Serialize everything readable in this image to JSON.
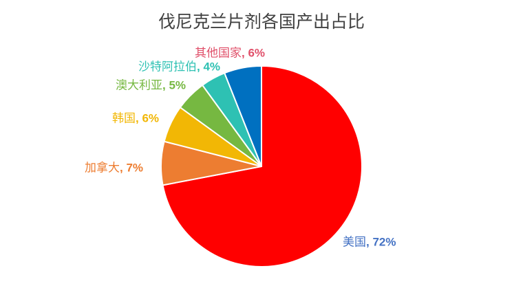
{
  "chart_data": {
    "type": "pie",
    "title": "伐尼克兰片剂各国产出占比",
    "start_angle": "12 o'clock",
    "direction": "clockwise",
    "slices": [
      {
        "label": "美国",
        "value": 72,
        "value_label": "72%",
        "color": "#FF0000",
        "label_color": "#4472C4"
      },
      {
        "label": "加拿大",
        "value": 7,
        "value_label": "7%",
        "color": "#ED7D31",
        "label_color": "#ED7D31"
      },
      {
        "label": "韩国",
        "value": 6,
        "value_label": "6%",
        "color": "#F2B705",
        "label_color": "#F2B705"
      },
      {
        "label": "澳大利亚",
        "value": 5,
        "value_label": "5%",
        "color": "#76B841",
        "label_color": "#76B841"
      },
      {
        "label": "沙特阿拉伯",
        "value": 4,
        "value_label": "4%",
        "color": "#2EC1B3",
        "label_color": "#2EC1B3"
      },
      {
        "label": "其他国家",
        "value": 6,
        "value_label": "6%",
        "color": "#0070C0",
        "label_color": "#E0506A"
      }
    ]
  }
}
